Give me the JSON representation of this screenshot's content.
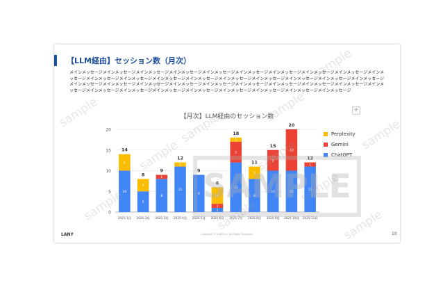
{
  "slide": {
    "title": "【LLM経由】セッション数（月次）",
    "body": "メインメッセージメインメッセージメインメッセージメインメッセージメインメッセージメインメッセージメインメッセージメインメッセージメインメッセージメインメッセージメインメッセージメインメッセージメインメッセージメインメッセージメインメッセージメインメッセージメインメッセージメインメッセージメインメッセージメインメッセージメインメッセージメインメッセージメインメッセージメインメッセージメインメッセージメインメッセージメインメッセージメインメッセージメインメッセージメインメッセージメインメッセージメインメッセージメインメッセージメインメッセージメインメッセージメインメッセージメインメッセージ",
    "footer_logo": "LANY",
    "footer_copyright": "Copyright © LANY Inc. All Rights Reserved.",
    "page_number": "10"
  },
  "watermark": {
    "big": "SAMPLE",
    "small": "sample"
  },
  "chart_menu_icon": "chart-menu-icon",
  "chart_data": {
    "type": "bar",
    "stacked": true,
    "title": "【月次】LLM経由のセッション数",
    "categories": [
      "2025-1月",
      "2025-2月",
      "2025-3月",
      "2025-4月",
      "2025-5月",
      "2025-6月",
      "2025-7月",
      "2025-8月",
      "2025-9月",
      "2025-10月",
      "2025-11月"
    ],
    "series": [
      {
        "name": "ChatGPT",
        "color": "#4285f4",
        "values": [
          10,
          5,
          8,
          11,
          9,
          1,
          12,
          8,
          10,
          10,
          11
        ]
      },
      {
        "name": "Gemini",
        "color": "#ea4335",
        "values": [
          0,
          0,
          1,
          0,
          0,
          1,
          5,
          0,
          5,
          10,
          1
        ]
      },
      {
        "name": "Perplexity",
        "color": "#fbbc04",
        "values": [
          4,
          3,
          0,
          1,
          0,
          4,
          1,
          3,
          0,
          0,
          0
        ]
      }
    ],
    "totals": [
      14,
      8,
      9,
      12,
      9,
      6,
      18,
      11,
      15,
      20,
      12
    ],
    "data_labels": [
      [
        "10",
        "",
        "4"
      ],
      [
        "5",
        "",
        "3"
      ],
      [
        "8",
        "1",
        ""
      ],
      [
        "11",
        "",
        "1"
      ],
      [
        "9",
        "",
        ""
      ],
      [
        "1",
        "1",
        "4"
      ],
      [
        "12",
        "5",
        "1"
      ],
      [
        "8",
        "",
        "3"
      ],
      [
        "10",
        "5",
        ""
      ],
      [
        "10",
        "10",
        ""
      ],
      [
        "11",
        "1",
        ""
      ]
    ],
    "ylim": [
      0,
      20
    ],
    "yticks": [
      0,
      5,
      10,
      15,
      20
    ],
    "legend_order": [
      "Perplexity",
      "Gemini",
      "ChatGPT"
    ],
    "legend_position": "right",
    "grid": true
  }
}
